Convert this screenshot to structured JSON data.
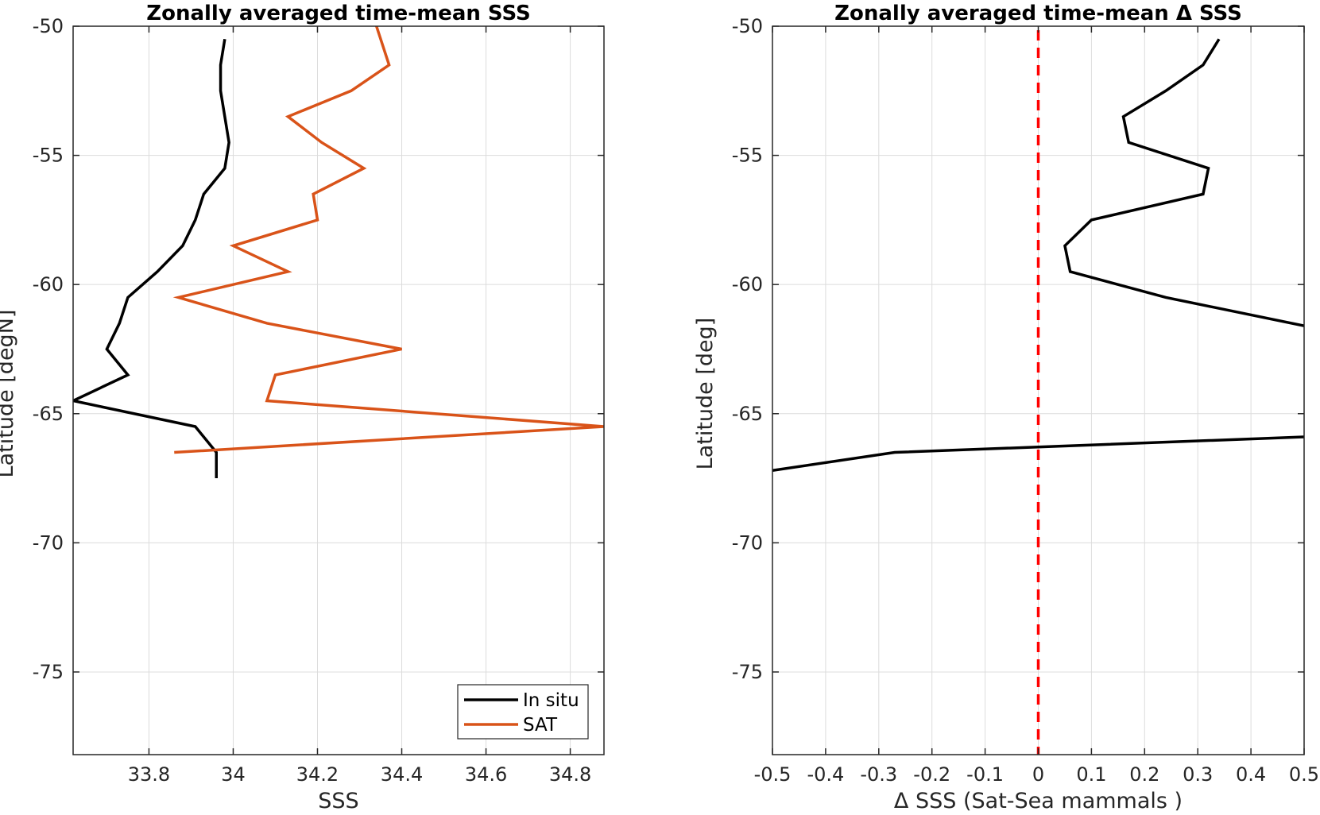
{
  "chart_data": [
    {
      "type": "line",
      "title": "Zonally averaged time-mean SSS",
      "xlabel": "SSS",
      "ylabel": "Latitude [degN]",
      "xlim": [
        33.62,
        34.88
      ],
      "ylim": [
        -78.2,
        -50
      ],
      "xticks": [
        "33.8",
        "34",
        "34.2",
        "34.4",
        "34.6",
        "34.8"
      ],
      "yticks": [
        "-50",
        "-55",
        "-60",
        "-65",
        "-70",
        "-75"
      ],
      "grid": true,
      "legend": "bottom-right",
      "series": [
        {
          "name": "In situ",
          "color": "#000000",
          "points": [
            [
              33.98,
              -50.5
            ],
            [
              33.97,
              -51.5
            ],
            [
              33.97,
              -52.5
            ],
            [
              33.98,
              -53.5
            ],
            [
              33.99,
              -54.5
            ],
            [
              33.98,
              -55.5
            ],
            [
              33.93,
              -56.5
            ],
            [
              33.91,
              -57.5
            ],
            [
              33.88,
              -58.5
            ],
            [
              33.82,
              -59.5
            ],
            [
              33.75,
              -60.5
            ],
            [
              33.73,
              -61.5
            ],
            [
              33.7,
              -62.5
            ],
            [
              33.75,
              -63.5
            ],
            [
              33.62,
              -64.5
            ],
            [
              33.91,
              -65.5
            ],
            [
              33.96,
              -66.5
            ],
            [
              33.96,
              -67.5
            ]
          ]
        },
        {
          "name": "SAT",
          "color": "#d95319",
          "points": [
            [
              34.34,
              -50.0
            ],
            [
              34.37,
              -51.5
            ],
            [
              34.28,
              -52.5
            ],
            [
              34.13,
              -53.5
            ],
            [
              34.21,
              -54.5
            ],
            [
              34.31,
              -55.5
            ],
            [
              34.19,
              -56.5
            ],
            [
              34.2,
              -57.5
            ],
            [
              34.0,
              -58.5
            ],
            [
              34.13,
              -59.5
            ],
            [
              33.87,
              -60.5
            ],
            [
              34.08,
              -61.5
            ],
            [
              34.4,
              -62.5
            ],
            [
              34.1,
              -63.5
            ],
            [
              34.08,
              -64.5
            ],
            [
              34.88,
              -65.5
            ],
            [
              33.86,
              -66.5
            ]
          ]
        }
      ]
    },
    {
      "type": "line",
      "title": "Zonally averaged time-mean Δ SSS",
      "xlabel": "Δ SSS (Sat-Sea mammals )",
      "ylabel": "Latitude [deg]",
      "xlim": [
        -0.5,
        0.5
      ],
      "ylim": [
        -78.2,
        -50
      ],
      "xticks": [
        "-0.5",
        "-0.4",
        "-0.3",
        "-0.2",
        "-0.1",
        "0",
        "0.1",
        "0.2",
        "0.3",
        "0.4",
        "0.5"
      ],
      "yticks": [
        "-50",
        "-55",
        "-60",
        "-65",
        "-70",
        "-75"
      ],
      "grid": true,
      "reference_line": {
        "x": 0,
        "color": "#ff0000",
        "style": "dashed"
      },
      "series": [
        {
          "color": "#000000",
          "points": [
            [
              0.34,
              -50.5
            ],
            [
              0.31,
              -51.5
            ],
            [
              0.24,
              -52.5
            ],
            [
              0.16,
              -53.5
            ],
            [
              0.17,
              -54.5
            ],
            [
              0.32,
              -55.5
            ],
            [
              0.31,
              -56.5
            ],
            [
              0.1,
              -57.5
            ],
            [
              0.05,
              -58.5
            ],
            [
              0.06,
              -59.5
            ],
            [
              0.24,
              -60.5
            ],
            [
              0.5,
              -61.6
            ]
          ]
        },
        {
          "color": "#000000",
          "points": [
            [
              -0.5,
              -67.2
            ],
            [
              -0.27,
              -66.5
            ],
            [
              0.5,
              -65.9
            ]
          ]
        }
      ]
    }
  ]
}
